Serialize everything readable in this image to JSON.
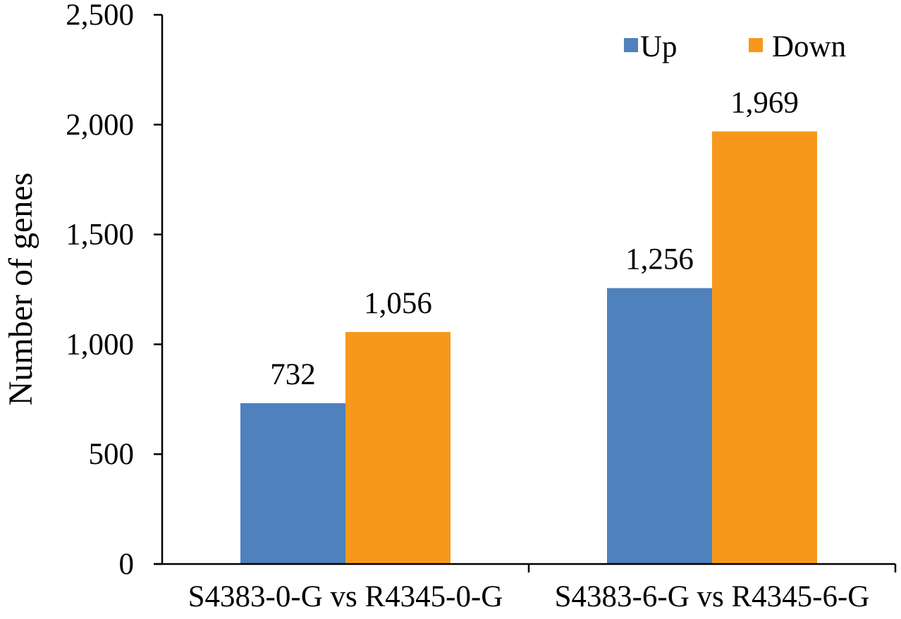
{
  "chart_data": {
    "type": "bar",
    "categories": [
      "S4383-0-G vs R4345-0-G",
      "S4383-6-G vs R4345-6-G"
    ],
    "series": [
      {
        "name": "Up",
        "values": [
          732,
          1256
        ],
        "color": "#4F81BD",
        "labels": [
          "732",
          "1,256"
        ]
      },
      {
        "name": "Down",
        "values": [
          1056,
          1969
        ],
        "color": "#F7981D",
        "labels": [
          "1,056",
          "1,969"
        ]
      }
    ],
    "title": "",
    "xlabel": "",
    "ylabel": "Number of genes",
    "ylim": [
      0,
      2500
    ],
    "yticks": [
      0,
      500,
      1000,
      1500,
      2000,
      2500
    ],
    "ytick_labels": [
      "0",
      "500",
      "1,000",
      "1,500",
      "2,000",
      "2,500"
    ],
    "grid": false,
    "legend_position": "top-right"
  }
}
